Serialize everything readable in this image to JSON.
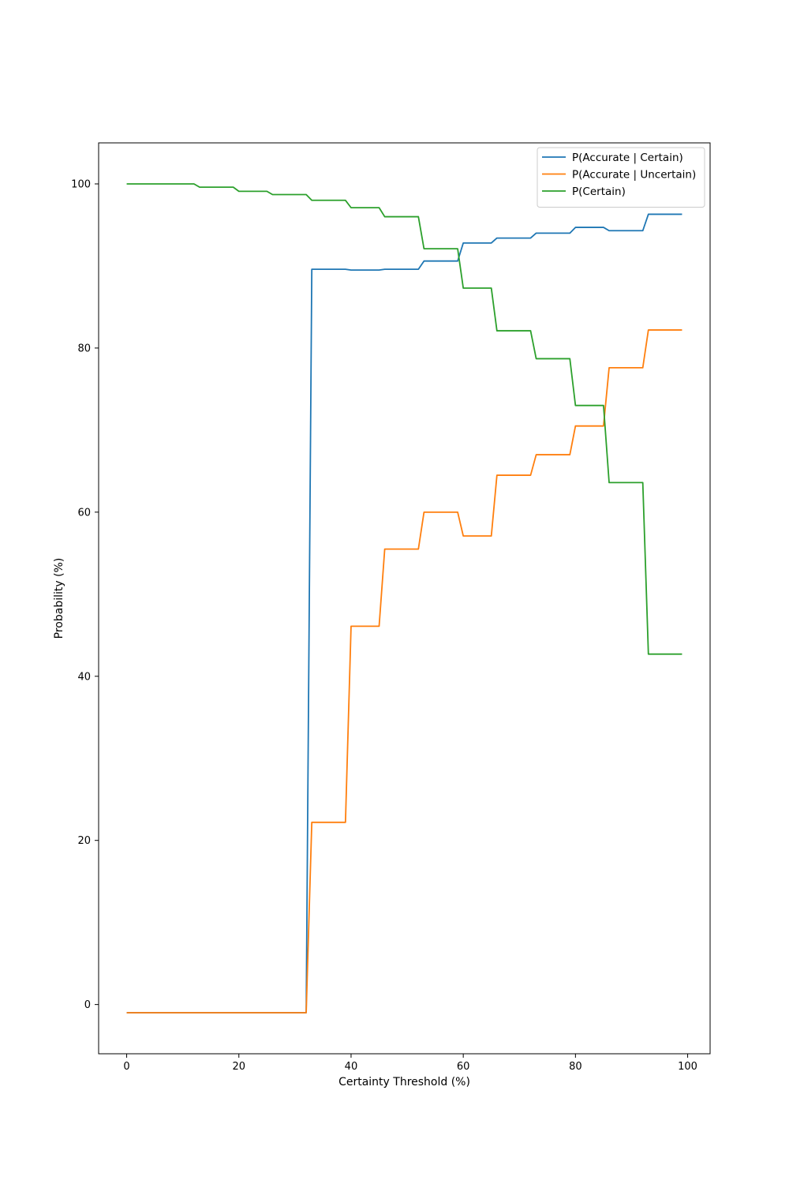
{
  "chart_data": {
    "type": "line",
    "title": "",
    "xlabel": "Certainty Threshold (%)",
    "ylabel": "Probability (%)",
    "xlim": [
      -5,
      104
    ],
    "ylim": [
      -6,
      105
    ],
    "xticks": [
      0,
      20,
      40,
      60,
      80,
      100
    ],
    "yticks": [
      0,
      20,
      40,
      60,
      80,
      100
    ],
    "grid": false,
    "legend_position": "top-right",
    "series": [
      {
        "name": "P(Accurate | Certain)",
        "color": "#1f77b4",
        "x": [
          0,
          32,
          33,
          39,
          40,
          45,
          46,
          52,
          53,
          59,
          60,
          65,
          66,
          72,
          73,
          79,
          80,
          85,
          86,
          92,
          93,
          99
        ],
        "y": [
          -1,
          -1,
          89.6,
          89.6,
          89.5,
          89.5,
          89.6,
          89.6,
          90.6,
          90.6,
          92.8,
          92.8,
          93.4,
          93.4,
          94.0,
          94.0,
          94.7,
          94.7,
          94.3,
          94.3,
          96.3,
          96.3
        ]
      },
      {
        "name": "P(Accurate | Uncertain)",
        "color": "#ff7f0e",
        "x": [
          0,
          32,
          33,
          39,
          40,
          45,
          46,
          52,
          53,
          59,
          60,
          65,
          66,
          72,
          73,
          79,
          80,
          85,
          86,
          92,
          93,
          99
        ],
        "y": [
          -1,
          -1,
          22.2,
          22.2,
          46.1,
          46.1,
          55.5,
          55.5,
          60.0,
          60.0,
          57.1,
          57.1,
          64.5,
          64.5,
          67.0,
          67.0,
          70.5,
          70.5,
          77.6,
          77.6,
          82.2,
          82.2
        ]
      },
      {
        "name": "P(Certain)",
        "color": "#2ca02c",
        "x": [
          0,
          12,
          13,
          19,
          20,
          25,
          26,
          32,
          33,
          39,
          40,
          45,
          46,
          52,
          53,
          59,
          60,
          65,
          66,
          72,
          73,
          79,
          80,
          85,
          86,
          92,
          93,
          99
        ],
        "y": [
          100,
          100,
          99.6,
          99.6,
          99.1,
          99.1,
          98.7,
          98.7,
          98.0,
          98.0,
          97.1,
          97.1,
          96.0,
          96.0,
          92.1,
          92.1,
          87.3,
          87.3,
          82.1,
          82.1,
          78.7,
          78.7,
          73.0,
          73.0,
          63.6,
          63.6,
          42.7,
          42.7
        ]
      }
    ]
  }
}
